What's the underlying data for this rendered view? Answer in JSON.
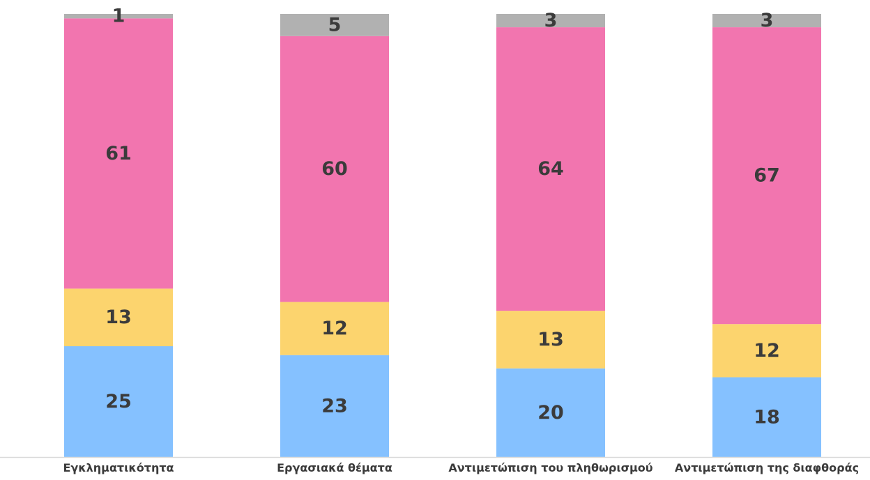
{
  "chart_data": {
    "type": "bar",
    "stacked": true,
    "percent_stacked": true,
    "categories": [
      "Εγκληματικότητα",
      "Εργασιακά θέματα",
      "Αντιμετώπιση του πληθωρισμού",
      "Αντιμετώπιση της διαφθοράς"
    ],
    "series": [
      {
        "values": [
          25,
          23,
          20,
          18
        ],
        "color": "#85C1FF"
      },
      {
        "values": [
          13,
          12,
          13,
          12
        ],
        "color": "#FCD46E"
      },
      {
        "values": [
          61,
          60,
          64,
          67
        ],
        "color": "#F275AF"
      },
      {
        "values": [
          1,
          5,
          3,
          3
        ],
        "color": "#B1B1B1"
      }
    ],
    "title": "",
    "xlabel": "",
    "ylabel": "",
    "ylim": [
      0,
      100
    ],
    "grid": false,
    "legend": "none",
    "axis_color": "#d9d9d9"
  }
}
